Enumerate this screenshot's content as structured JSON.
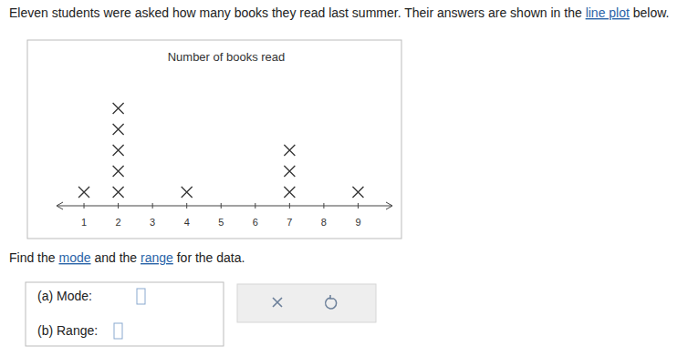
{
  "intro": [
    "Eleven students were asked how many books they read last summer. Their answers are shown in the ",
    "line plot",
    " below."
  ],
  "chart_data": {
    "type": "dot",
    "title": "Number of books read",
    "x": [
      1,
      2,
      4,
      7,
      9
    ],
    "values": [
      1,
      5,
      1,
      3,
      1
    ],
    "xlim": [
      0.2,
      10
    ],
    "xticks": [
      1,
      2,
      3,
      4,
      5,
      6,
      7,
      8,
      9
    ],
    "marker": "x",
    "color": "#333333"
  },
  "task": [
    "Find the ",
    "mode",
    " and the ",
    "range",
    " for the data."
  ],
  "answers": [
    "(a) Mode:",
    "(b) Range:"
  ]
}
